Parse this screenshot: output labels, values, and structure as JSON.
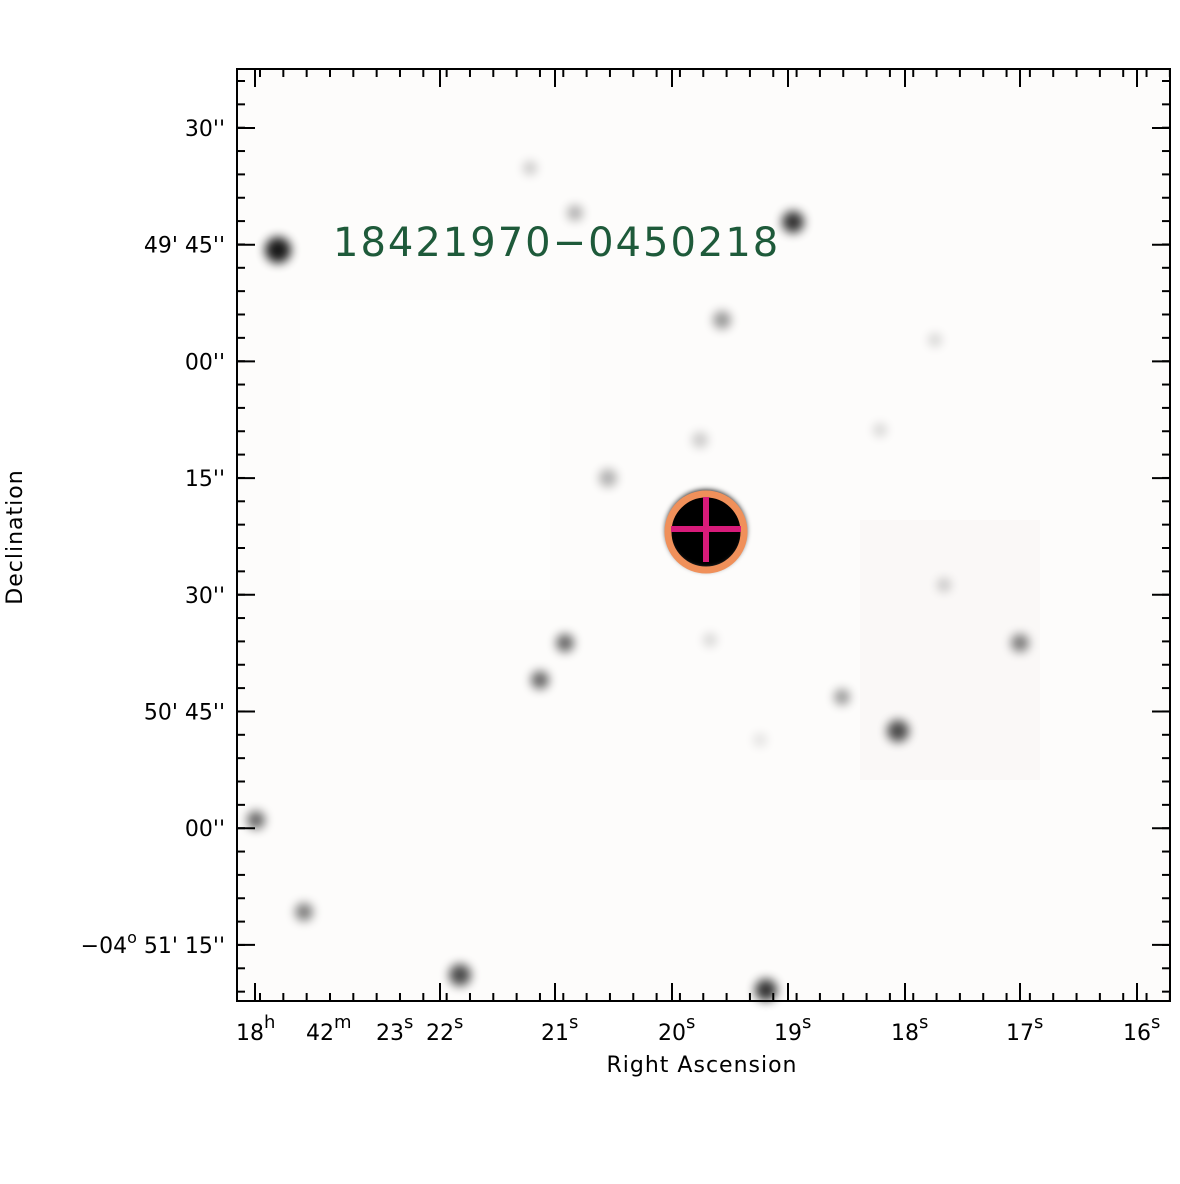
{
  "plot": {
    "object_label": "18421970−0450218",
    "x_label": "Right Ascension",
    "y_label": "Declination",
    "y_ticks": [
      "30''",
      "49' 45''",
      "00''",
      "15''",
      "30''",
      "50' 45''",
      "00''",
      {
        "prefix": "−04",
        "sup": "o",
        "rest": " 51' 15''"
      }
    ],
    "x_ticks": [
      {
        "v": "18",
        "sup": "h"
      },
      {
        "v": "42",
        "sup": "m"
      },
      {
        "v": "23",
        "sup": "s"
      },
      {
        "v": "22",
        "sup": "s"
      },
      {
        "v": "21",
        "sup": "s"
      },
      {
        "v": "20",
        "sup": "s"
      },
      {
        "v": "19",
        "sup": "s"
      },
      {
        "v": "18",
        "sup": "s"
      },
      {
        "v": "17",
        "sup": "s"
      },
      {
        "v": "16",
        "sup": "s"
      }
    ]
  }
}
